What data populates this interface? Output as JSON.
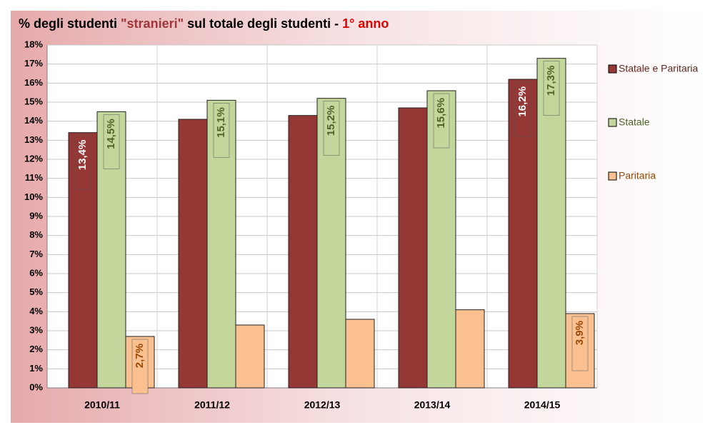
{
  "chart_data": {
    "type": "bar",
    "title_parts": [
      {
        "text": "% degli studenti ",
        "color": "#000000"
      },
      {
        "text": "\"stranieri\"",
        "color": "#a0353a"
      },
      {
        "text": " sul totale degli studenti - ",
        "color": "#000000"
      },
      {
        "text": "1° anno",
        "color": "#e00000"
      }
    ],
    "categories": [
      "2010/11",
      "2011/12",
      "2012/13",
      "2013/14",
      "2014/15"
    ],
    "series": [
      {
        "name": "Statale e Paritaria",
        "color": "#953735",
        "label_bg": "#953735",
        "label_color": "#ffffff",
        "values": [
          13.4,
          14.1,
          14.3,
          14.7,
          16.2
        ],
        "value_labels": [
          "13,4%",
          null,
          null,
          null,
          "16,2%"
        ]
      },
      {
        "name": "Statale",
        "color": "#c3d69b",
        "label_bg": "#c3d69b",
        "label_color": "#4f6228",
        "values": [
          14.5,
          15.1,
          15.2,
          15.6,
          17.3
        ],
        "value_labels": [
          "14,5%",
          "15,1%",
          "15,2%",
          "15,6%",
          "17,3%"
        ]
      },
      {
        "name": "Paritaria",
        "color": "#fac090",
        "label_bg": "#fac090",
        "label_color": "#984807",
        "values": [
          2.7,
          3.3,
          3.6,
          4.1,
          3.9
        ],
        "value_labels": [
          "2,7%",
          null,
          null,
          null,
          "3,9%"
        ]
      }
    ],
    "ylim": [
      0,
      18
    ],
    "yticks": [
      {
        "value": 0,
        "label": "0%"
      },
      {
        "value": 1,
        "label": "1%"
      },
      {
        "value": 2,
        "label": "2%"
      },
      {
        "value": 3,
        "label": "3%"
      },
      {
        "value": 4,
        "label": "4%"
      },
      {
        "value": 5,
        "label": "5%"
      },
      {
        "value": 6,
        "label": "6%"
      },
      {
        "value": 7,
        "label": "7%"
      },
      {
        "value": 8,
        "label": "8%"
      },
      {
        "value": 9,
        "label": "9%"
      },
      {
        "value": 10,
        "label": "10%"
      },
      {
        "value": 11,
        "label": "11%"
      },
      {
        "value": 12,
        "label": "12%"
      },
      {
        "value": 13,
        "label": "13%"
      },
      {
        "value": 14,
        "label": "14%"
      },
      {
        "value": 15,
        "label": "15%"
      },
      {
        "value": 16,
        "label": "16%"
      },
      {
        "value": 17,
        "label": "17%"
      },
      {
        "value": 18,
        "label": "18%"
      }
    ],
    "grid": true,
    "legend": "right"
  }
}
